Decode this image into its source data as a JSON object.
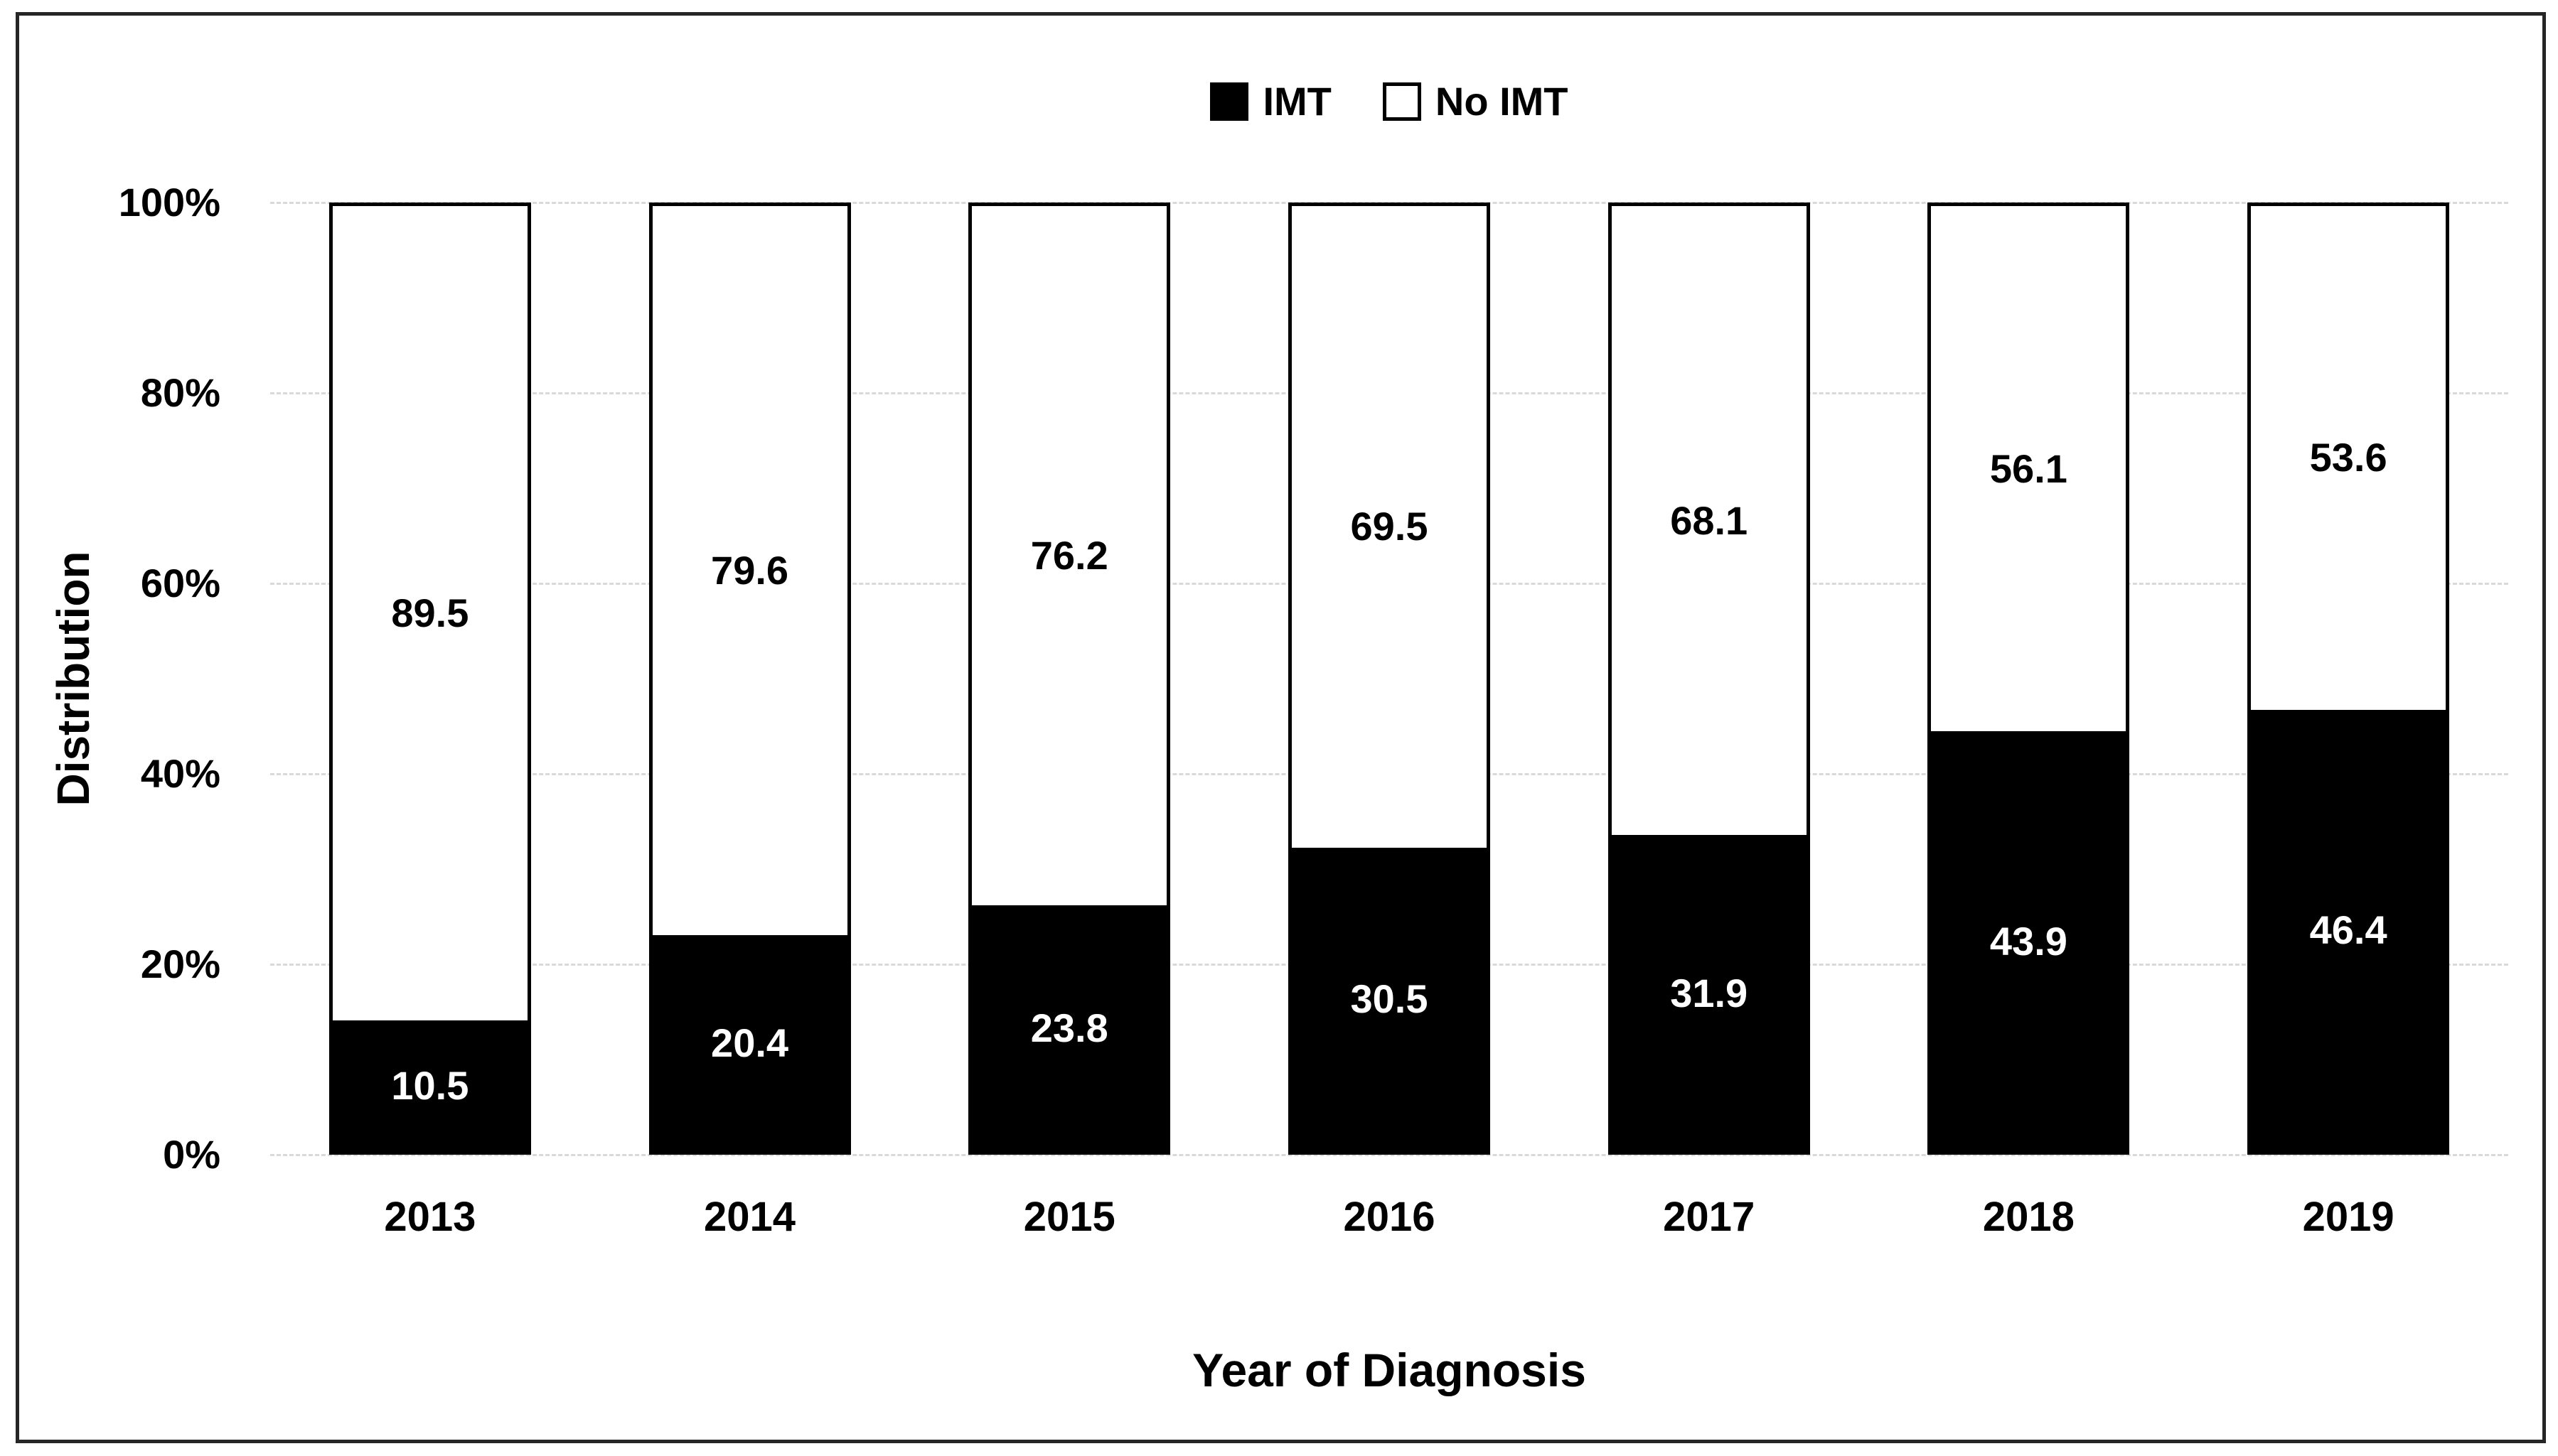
{
  "figure": {
    "legend": [
      {
        "label": "IMT",
        "swatch_color": "#000000"
      },
      {
        "label": "No IMT",
        "swatch_color": "#ffffff"
      }
    ],
    "colors": {
      "imt_fill": "#000000",
      "no_imt_fill": "#ffffff",
      "bar_border": "#000000",
      "gridline": "#d9d9d9",
      "figure_border": "#262626",
      "label_on_dark": "#ffffff",
      "label_on_light": "#000000"
    }
  },
  "chart_data": {
    "type": "bar",
    "subtype": "stacked-100-percent-column",
    "title": "",
    "xlabel": "Year of Diagnosis",
    "ylabel": "Distribution",
    "categories": [
      "2013",
      "2014",
      "2015",
      "2016",
      "2017",
      "2018",
      "2019"
    ],
    "series": [
      {
        "name": "IMT",
        "color": "#000000",
        "values": [
          10.5,
          20.4,
          23.8,
          30.5,
          31.9,
          43.9,
          46.4
        ]
      },
      {
        "name": "No IMT",
        "color": "#ffffff",
        "values": [
          89.5,
          79.6,
          76.2,
          69.5,
          68.1,
          56.1,
          53.6
        ]
      }
    ],
    "ylim": [
      0,
      100
    ],
    "ytick_labels": [
      "0%",
      "20%",
      "40%",
      "60%",
      "80%",
      "100%"
    ],
    "ytick_values": [
      0,
      20,
      40,
      60,
      80,
      100
    ],
    "grid": true,
    "gridline_style": "dashed-light-gray",
    "legend_position": "top-center",
    "data_labels": "centered-in-segments"
  }
}
